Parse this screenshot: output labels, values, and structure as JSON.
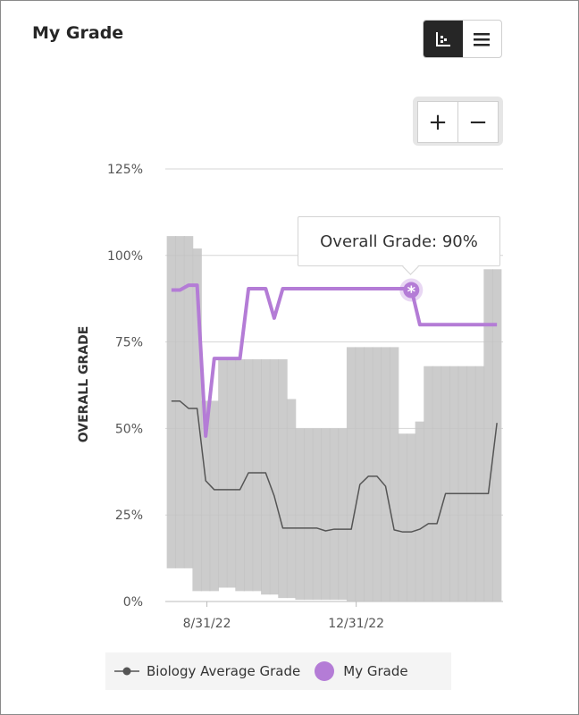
{
  "header": {
    "title": "My Grade",
    "view_chart_icon": "scatter-chart-icon",
    "view_list_icon": "list-icon"
  },
  "zoom": {
    "in_label": "+",
    "out_label": "−"
  },
  "tooltip": {
    "text": "Overall Grade: 90%"
  },
  "colors": {
    "my_grade": "#b47cd6",
    "average": "#555555",
    "range": "#c3c3c3",
    "toggle_active": "#262626"
  },
  "legend": {
    "average": "Biology Average Grade",
    "my_grade": "My Grade"
  },
  "chart_data": {
    "type": "line",
    "ylabel": "OVERALL GRADE",
    "ylim": [
      0,
      125
    ],
    "yticks": [
      "0%",
      "25%",
      "50%",
      "75%",
      "100%",
      "125%"
    ],
    "ytick_values": [
      0,
      25,
      50,
      75,
      100,
      125
    ],
    "xticks": [
      "8/31/22",
      "12/31/22"
    ],
    "xtick_dates": [
      "2022-08-31",
      "2022-12-31"
    ],
    "xlim": [
      "2022-07-28",
      "2023-04-30"
    ],
    "grid": true,
    "legend_position": "bottom",
    "series": [
      {
        "name": "Biology Average Grade",
        "points": [
          [
            "2022-08-02",
            57.9
          ],
          [
            "2022-08-09",
            57.9
          ],
          [
            "2022-08-16",
            55.8
          ],
          [
            "2022-08-23",
            55.8
          ],
          [
            "2022-08-30",
            34.9
          ],
          [
            "2022-09-06",
            32.3
          ],
          [
            "2022-09-27",
            32.3
          ],
          [
            "2022-10-04",
            37.2
          ],
          [
            "2022-10-18",
            37.2
          ],
          [
            "2022-10-25",
            30.5
          ],
          [
            "2022-11-01",
            21.2
          ],
          [
            "2022-11-29",
            21.2
          ],
          [
            "2022-12-06",
            20.4
          ],
          [
            "2022-12-13",
            20.9
          ],
          [
            "2022-12-27",
            20.9
          ],
          [
            "2023-01-03",
            33.8
          ],
          [
            "2023-01-10",
            36.2
          ],
          [
            "2023-01-17",
            36.2
          ],
          [
            "2023-01-24",
            33.3
          ],
          [
            "2023-01-31",
            20.7
          ],
          [
            "2023-02-07",
            20.1
          ],
          [
            "2023-02-14",
            20.1
          ],
          [
            "2023-02-21",
            20.9
          ],
          [
            "2023-02-28",
            22.5
          ],
          [
            "2023-03-07",
            22.5
          ],
          [
            "2023-03-14",
            31.2
          ],
          [
            "2023-04-18",
            31.2
          ],
          [
            "2023-04-25",
            51.6
          ]
        ]
      },
      {
        "name": "My Grade",
        "points": [
          [
            "2022-08-02",
            90
          ],
          [
            "2022-08-09",
            90
          ],
          [
            "2022-08-16",
            91.4
          ],
          [
            "2022-08-23",
            91.4
          ],
          [
            "2022-08-30",
            47.8
          ],
          [
            "2022-09-06",
            70.2
          ],
          [
            "2022-09-27",
            70.2
          ],
          [
            "2022-10-04",
            90.4
          ],
          [
            "2022-10-18",
            90.4
          ],
          [
            "2022-10-25",
            81.9
          ],
          [
            "2022-11-01",
            90.4
          ],
          [
            "2023-02-14",
            90.4
          ],
          [
            "2023-02-21",
            80
          ],
          [
            "2023-04-25",
            80
          ]
        ],
        "highlight": [
          "2023-02-14",
          90
        ]
      }
    ],
    "range_band": [
      [
        "2022-08-02",
        9.6,
        105.6
      ],
      [
        "2022-08-09",
        9.6,
        105.6
      ],
      [
        "2022-08-16",
        9.6,
        105.6
      ],
      [
        "2022-08-23",
        3,
        102
      ],
      [
        "2022-08-30",
        3,
        58
      ],
      [
        "2022-09-06",
        3,
        58
      ],
      [
        "2022-09-13",
        4,
        70
      ],
      [
        "2022-09-20",
        4,
        70
      ],
      [
        "2022-09-27",
        3,
        70
      ],
      [
        "2022-10-04",
        3,
        70
      ],
      [
        "2022-10-11",
        3,
        70
      ],
      [
        "2022-10-18",
        2,
        70
      ],
      [
        "2022-10-25",
        2,
        70
      ],
      [
        "2022-11-01",
        1,
        70
      ],
      [
        "2022-11-08",
        1,
        58.5
      ],
      [
        "2022-11-15",
        0.5,
        50
      ],
      [
        "2022-11-22",
        0.5,
        50
      ],
      [
        "2022-11-29",
        0.5,
        50
      ],
      [
        "2022-12-06",
        0.5,
        50
      ],
      [
        "2022-12-13",
        0.5,
        50
      ],
      [
        "2022-12-20",
        0.5,
        50
      ],
      [
        "2022-12-27",
        0,
        73.5
      ],
      [
        "2023-01-03",
        0,
        73.5
      ],
      [
        "2023-01-10",
        0,
        73.5
      ],
      [
        "2023-01-17",
        0,
        73.5
      ],
      [
        "2023-01-24",
        0,
        73.5
      ],
      [
        "2023-01-31",
        0,
        73.5
      ],
      [
        "2023-02-07",
        0,
        48.5
      ],
      [
        "2023-02-14",
        0,
        48.5
      ],
      [
        "2023-02-21",
        0,
        52
      ],
      [
        "2023-02-28",
        0,
        68
      ],
      [
        "2023-03-07",
        0,
        68
      ],
      [
        "2023-03-14",
        0,
        68
      ],
      [
        "2023-03-21",
        0,
        68
      ],
      [
        "2023-03-28",
        0,
        68
      ],
      [
        "2023-04-04",
        0,
        68
      ],
      [
        "2023-04-11",
        0,
        68
      ],
      [
        "2023-04-18",
        0,
        96
      ],
      [
        "2023-04-25",
        0,
        96
      ]
    ]
  }
}
